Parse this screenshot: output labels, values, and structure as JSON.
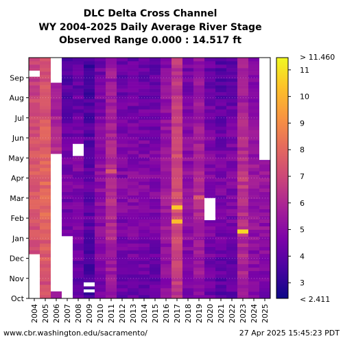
{
  "chart_data": {
    "type": "heatmap",
    "title": [
      "DLC Delta Cross Channel",
      "WY 2004-2025 Daily Average River Stage",
      "Observed Range 0.000 : 14.517 ft"
    ],
    "x_categories": [
      "2004",
      "2005",
      "2006",
      "2007",
      "2008",
      "2009",
      "2010",
      "2011",
      "2012",
      "2013",
      "2014",
      "2015",
      "2016",
      "2017",
      "2018",
      "2019",
      "2020",
      "2021",
      "2022",
      "2023",
      "2024",
      "2025"
    ],
    "y_months": [
      "Oct",
      "Nov",
      "Dec",
      "Jan",
      "Feb",
      "Mar",
      "Apr",
      "May",
      "Jun",
      "Jul",
      "Aug",
      "Sep"
    ],
    "colorbar": {
      "min_label": "< 2.411",
      "max_label": "> 11.460",
      "ticks": [
        3,
        4,
        5,
        6,
        7,
        8,
        9,
        10,
        11
      ],
      "range": [
        2.411,
        11.46
      ]
    },
    "year_mean_stage": [
      7.2,
      7.6,
      6.0,
      4.2,
      4.4,
      3.8,
      4.8,
      5.8,
      4.5,
      4.6,
      4.6,
      4.5,
      5.3,
      6.8,
      4.9,
      5.6,
      4.6,
      4.3,
      4.4,
      6.0,
      5.1,
      5.0
    ],
    "high_events": [
      {
        "year": "2017",
        "month_position": 4.5,
        "value": 10.5
      },
      {
        "year": "2017",
        "month_position": 3.8,
        "value": 10.2
      },
      {
        "year": "2023",
        "month_position": 3.3,
        "value": 10.8
      },
      {
        "year": "2011",
        "month_position": 6.3,
        "value": 7.5
      },
      {
        "year": "2019",
        "month_position": 5.0,
        "value": 7.5
      },
      {
        "year": "2005",
        "month_position": 3.3,
        "value": 7.6
      },
      {
        "year": "2023",
        "month_position": 5.9,
        "value": 7.0
      },
      {
        "year": "2004",
        "month_position": 4.8,
        "value": 8.0
      }
    ],
    "missing": [
      {
        "year": "2004",
        "start_month": 0.0,
        "end_month": 2.2
      },
      {
        "year": "2004",
        "start_month": 11.05,
        "end_month": 11.35
      },
      {
        "year": "2006",
        "start_month": 0.35,
        "end_month": 7.2
      },
      {
        "year": "2006",
        "start_month": 10.75,
        "end_month": 12.0
      },
      {
        "year": "2007",
        "start_month": 0.0,
        "end_month": 3.1
      },
      {
        "year": "2008",
        "start_month": 7.1,
        "end_month": 7.7
      },
      {
        "year": "2009",
        "start_month": 0.6,
        "end_month": 0.8
      },
      {
        "year": "2009",
        "start_month": 0.3,
        "end_month": 0.45
      },
      {
        "year": "2020",
        "start_month": 3.9,
        "end_month": 5.0
      },
      {
        "year": "2025",
        "start_month": 6.9,
        "end_month": 12.0
      }
    ]
  },
  "footer": {
    "url": "www.cbr.washington.edu/sacramento/",
    "timestamp": "27 Apr 2025 15:45:23 PDT"
  }
}
